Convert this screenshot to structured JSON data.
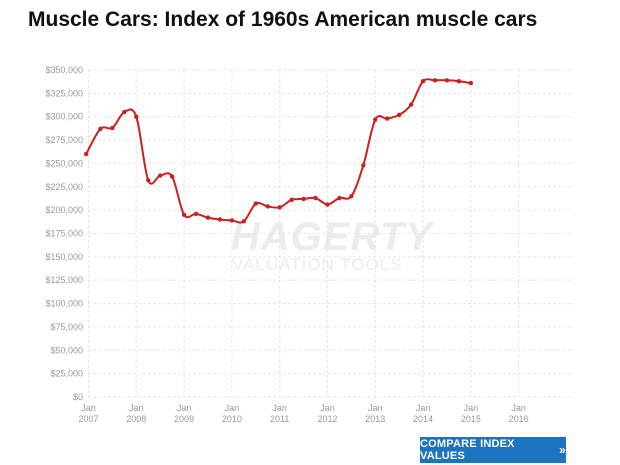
{
  "title": "Muscle Cars: Index of 1960s American muscle cars",
  "watermark": {
    "brand": "HAGERTY",
    "tagline": "VALUATION TOOLS"
  },
  "compare_button": {
    "label": "COMPARE INDEX VALUES",
    "chevron": "»"
  },
  "colors": {
    "line": "#cc1f1f",
    "grid": "#e6e6e6",
    "axis_text": "#999999",
    "button": "#1e73be"
  },
  "chart_data": {
    "type": "line",
    "title": "Muscle Cars: Index of 1960s American muscle cars",
    "xlabel": "",
    "ylabel": "",
    "ylim": [
      0,
      350000
    ],
    "xlim": [
      2006.99,
      2016.99
    ],
    "y_ticks": [
      0,
      25000,
      50000,
      75000,
      100000,
      125000,
      150000,
      175000,
      200000,
      225000,
      250000,
      275000,
      300000,
      325000,
      350000
    ],
    "y_tick_labels": [
      "$0",
      "$25,000",
      "$50,000",
      "$75,000",
      "$100,000",
      "$125,000",
      "$150,000",
      "$175,000",
      "$200,000",
      "$225,000",
      "$250,000",
      "$275,000",
      "$300,000",
      "$325,000",
      "$350,000"
    ],
    "x_ticks": [
      {
        "x": 2007,
        "month": "Jan",
        "year": "2007"
      },
      {
        "x": 2008,
        "month": "Jan",
        "year": "2008"
      },
      {
        "x": 2009,
        "month": "Jan",
        "year": "2009"
      },
      {
        "x": 2010,
        "month": "Jan",
        "year": "2010"
      },
      {
        "x": 2011,
        "month": "Jan",
        "year": "2011"
      },
      {
        "x": 2012,
        "month": "Jan",
        "year": "2012"
      },
      {
        "x": 2013,
        "month": "Jan",
        "year": "2013"
      },
      {
        "x": 2014,
        "month": "Jan",
        "year": "2014"
      },
      {
        "x": 2015,
        "month": "Jan",
        "year": "2015"
      },
      {
        "x": 2016,
        "month": "Jan",
        "year": "2016"
      }
    ],
    "grid": true,
    "series": [
      {
        "points": [
          [
            2006.95,
            260000
          ],
          [
            2007.25,
            287000
          ],
          [
            2007.5,
            288000
          ],
          [
            2007.75,
            305000
          ],
          [
            2008.0,
            300000
          ],
          [
            2008.25,
            232000
          ],
          [
            2008.5,
            237000
          ],
          [
            2008.75,
            236000
          ],
          [
            2009.0,
            195000
          ],
          [
            2009.25,
            196000
          ],
          [
            2009.5,
            192000
          ],
          [
            2009.75,
            190000
          ],
          [
            2010.0,
            189000
          ],
          [
            2010.25,
            188000
          ],
          [
            2010.5,
            207000
          ],
          [
            2010.75,
            204000
          ],
          [
            2011.0,
            203000
          ],
          [
            2011.25,
            211000
          ],
          [
            2011.5,
            212000
          ],
          [
            2011.75,
            213000
          ],
          [
            2012.0,
            206000
          ],
          [
            2012.25,
            213000
          ],
          [
            2012.5,
            215000
          ],
          [
            2012.75,
            248000
          ],
          [
            2013.0,
            297000
          ],
          [
            2013.25,
            298000
          ],
          [
            2013.5,
            302000
          ],
          [
            2013.75,
            313000
          ],
          [
            2014.0,
            338000
          ],
          [
            2014.25,
            339000
          ],
          [
            2014.5,
            339000
          ],
          [
            2014.75,
            338000
          ],
          [
            2015.0,
            336000
          ]
        ]
      }
    ]
  }
}
